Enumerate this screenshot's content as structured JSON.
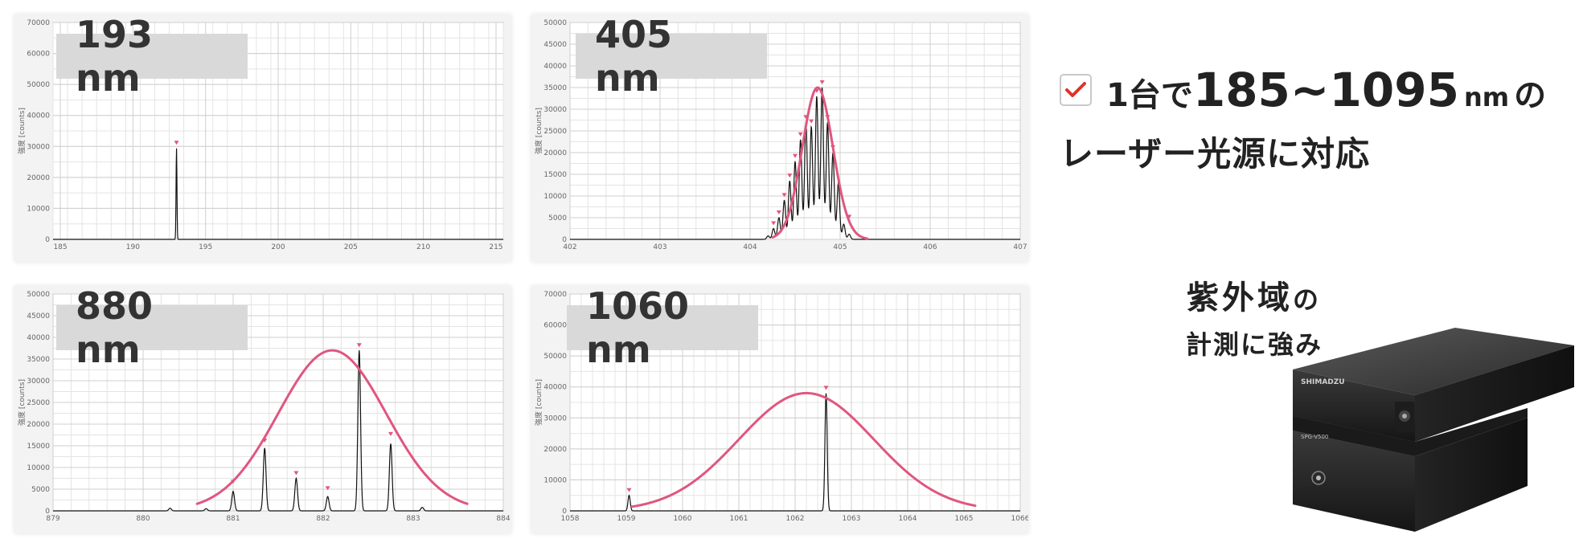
{
  "headline": {
    "check_icon": "red-checkmark-icon",
    "part1": "1台で",
    "range": "185~1095",
    "unit": "nm",
    "part2": "の",
    "line2": "レーザー光源に対応"
  },
  "feature": {
    "line1_main": "紫外域",
    "line1_suffix": "の",
    "line2": "計測に強み"
  },
  "device": {
    "brand": "SHIMADZU",
    "model": "SPG-V500"
  },
  "colors": {
    "envelope": "#e0567f",
    "spectrum": "#111111",
    "marker": "#e0567f",
    "label_bg": "#d9d9d9"
  },
  "chart_data": [
    {
      "type": "line",
      "label": "193 nm",
      "ylabel": "強度 [counts]",
      "xlim": [
        184.5,
        215.5
      ],
      "ylim": [
        0,
        70000
      ],
      "xticks": [
        185,
        190,
        195,
        200,
        205,
        210,
        215
      ],
      "yticks": [
        0,
        10000,
        20000,
        30000,
        40000,
        50000,
        60000,
        70000
      ],
      "grid": true,
      "peaks": [
        {
          "x": 193.0,
          "y": 29500,
          "width": 0.03
        }
      ],
      "markers": [
        {
          "x": 193.0,
          "y": 29500
        }
      ]
    },
    {
      "type": "line",
      "label": "405 nm",
      "ylabel": "強度 [counts]",
      "xlim": [
        402,
        407
      ],
      "ylim": [
        0,
        50000
      ],
      "xticks": [
        402,
        403,
        404,
        405,
        406,
        407
      ],
      "yticks": [
        0,
        5000,
        10000,
        15000,
        20000,
        25000,
        30000,
        35000,
        40000,
        45000,
        50000
      ],
      "grid": true,
      "peaks": [
        {
          "x": 404.2,
          "y": 800,
          "width": 0.015
        },
        {
          "x": 404.26,
          "y": 2500,
          "width": 0.015
        },
        {
          "x": 404.32,
          "y": 5000,
          "width": 0.015
        },
        {
          "x": 404.38,
          "y": 9000,
          "width": 0.015
        },
        {
          "x": 404.44,
          "y": 13500,
          "width": 0.015
        },
        {
          "x": 404.5,
          "y": 18000,
          "width": 0.015
        },
        {
          "x": 404.56,
          "y": 23000,
          "width": 0.015
        },
        {
          "x": 404.62,
          "y": 27000,
          "width": 0.015
        },
        {
          "x": 404.68,
          "y": 26000,
          "width": 0.015
        },
        {
          "x": 404.74,
          "y": 33000,
          "width": 0.015
        },
        {
          "x": 404.8,
          "y": 35000,
          "width": 0.015
        },
        {
          "x": 404.86,
          "y": 27000,
          "width": 0.015
        },
        {
          "x": 404.92,
          "y": 20000,
          "width": 0.015
        },
        {
          "x": 404.98,
          "y": 13000,
          "width": 0.015
        },
        {
          "x": 405.04,
          "y": 3500,
          "width": 0.015
        },
        {
          "x": 405.1,
          "y": 1200,
          "width": 0.015
        }
      ],
      "markers": [
        {
          "x": 404.26,
          "y": 2500
        },
        {
          "x": 404.32,
          "y": 5000
        },
        {
          "x": 404.38,
          "y": 9000
        },
        {
          "x": 404.44,
          "y": 13500
        },
        {
          "x": 404.5,
          "y": 18000
        },
        {
          "x": 404.56,
          "y": 23000
        },
        {
          "x": 404.62,
          "y": 27000
        },
        {
          "x": 404.68,
          "y": 26000
        },
        {
          "x": 404.74,
          "y": 33000
        },
        {
          "x": 404.8,
          "y": 35000
        },
        {
          "x": 404.86,
          "y": 27000
        },
        {
          "x": 404.92,
          "y": 20000
        },
        {
          "x": 405.1,
          "y": 4000
        }
      ],
      "envelope": {
        "center": 404.75,
        "amplitude": 35000,
        "sigma": 0.17,
        "x_range": [
          404.25,
          405.3
        ]
      }
    },
    {
      "type": "line",
      "label": "880 nm",
      "ylabel": "強度 [counts]",
      "xlim": [
        879,
        884
      ],
      "ylim": [
        0,
        50000
      ],
      "xticks": [
        879,
        880,
        881,
        882,
        883,
        884
      ],
      "yticks": [
        0,
        5000,
        10000,
        15000,
        20000,
        25000,
        30000,
        35000,
        40000,
        45000,
        50000
      ],
      "grid": true,
      "peaks": [
        {
          "x": 880.3,
          "y": 600,
          "width": 0.015
        },
        {
          "x": 880.7,
          "y": 500,
          "width": 0.015
        },
        {
          "x": 881.0,
          "y": 4500,
          "width": 0.015
        },
        {
          "x": 881.35,
          "y": 14500,
          "width": 0.015
        },
        {
          "x": 881.7,
          "y": 7500,
          "width": 0.015
        },
        {
          "x": 882.05,
          "y": 3300,
          "width": 0.015
        },
        {
          "x": 882.4,
          "y": 37000,
          "width": 0.015
        },
        {
          "x": 882.75,
          "y": 15500,
          "width": 0.015
        },
        {
          "x": 883.1,
          "y": 800,
          "width": 0.015
        }
      ],
      "markers": [
        {
          "x": 881.0,
          "y": 5500
        },
        {
          "x": 881.35,
          "y": 15000
        },
        {
          "x": 881.7,
          "y": 7500
        },
        {
          "x": 882.05,
          "y": 4000
        },
        {
          "x": 882.4,
          "y": 37000
        },
        {
          "x": 882.75,
          "y": 16500
        }
      ],
      "envelope": {
        "center": 882.1,
        "amplitude": 37000,
        "sigma": 0.6,
        "x_range": [
          880.6,
          883.6
        ]
      }
    },
    {
      "type": "line",
      "label": "1060 nm",
      "ylabel": "強度 [counts]",
      "xlim": [
        1058,
        1066
      ],
      "ylim": [
        0,
        70000
      ],
      "xticks": [
        1058,
        1059,
        1060,
        1061,
        1062,
        1063,
        1064,
        1065,
        1066
      ],
      "yticks": [
        0,
        10000,
        20000,
        30000,
        40000,
        50000,
        60000,
        70000
      ],
      "grid": true,
      "peaks": [
        {
          "x": 1059.05,
          "y": 5000,
          "width": 0.02
        },
        {
          "x": 1062.55,
          "y": 38000,
          "width": 0.02
        }
      ],
      "markers": [
        {
          "x": 1059.05,
          "y": 5000
        },
        {
          "x": 1062.55,
          "y": 38000
        }
      ],
      "envelope": {
        "center": 1062.2,
        "amplitude": 38000,
        "sigma": 1.2,
        "x_range": [
          1059.1,
          1065.2
        ]
      }
    }
  ]
}
